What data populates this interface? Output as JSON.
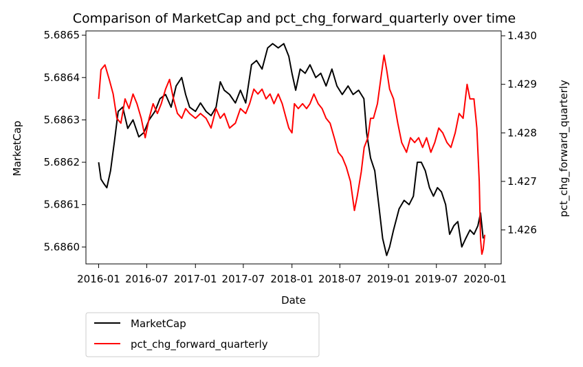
{
  "chart_data": {
    "type": "line",
    "title": "Comparison of MarketCap and pct_chg_forward_quarterly over time",
    "xlabel": "Date",
    "x_ticks": [
      "2016-01",
      "2016-07",
      "2017-01",
      "2017-07",
      "2018-01",
      "2018-07",
      "2019-01",
      "2019-07",
      "2020-01"
    ],
    "x_range": [
      "2015-11-14",
      "2020-03-02"
    ],
    "y_left": {
      "label": "MarketCap",
      "range": [
        5.68596,
        5.68651
      ],
      "ticks": [
        "5.6860",
        "5.6861",
        "5.6862",
        "5.6863",
        "5.6864",
        "5.6865"
      ],
      "color": "#000000"
    },
    "y_right": {
      "label": "pct_chg_forward_quarterly",
      "range": [
        1.4253,
        1.4301
      ],
      "ticks": [
        "1.426",
        "1.427",
        "1.428",
        "1.429",
        "1.430"
      ],
      "color": "#ff0000"
    },
    "grid": false,
    "legend_placement": "below-left",
    "series": [
      {
        "name": "MarketCap",
        "axis": "left",
        "color": "#000000",
        "points": [
          [
            "2016-01-01",
            5.6862
          ],
          [
            "2016-01-10",
            5.68616
          ],
          [
            "2016-01-20",
            5.68615
          ],
          [
            "2016-02-01",
            5.68614
          ],
          [
            "2016-02-15",
            5.68618
          ],
          [
            "2016-03-01",
            5.68625
          ],
          [
            "2016-03-15",
            5.68632
          ],
          [
            "2016-04-01",
            5.68633
          ],
          [
            "2016-04-20",
            5.68628
          ],
          [
            "2016-05-10",
            5.6863
          ],
          [
            "2016-06-01",
            5.68626
          ],
          [
            "2016-06-20",
            5.68627
          ],
          [
            "2016-07-10",
            5.6863
          ],
          [
            "2016-08-01",
            5.68632
          ],
          [
            "2016-08-20",
            5.68635
          ],
          [
            "2016-09-10",
            5.68636
          ],
          [
            "2016-10-01",
            5.68633
          ],
          [
            "2016-10-20",
            5.68638
          ],
          [
            "2016-11-10",
            5.6864
          ],
          [
            "2016-11-25",
            5.68636
          ],
          [
            "2016-12-10",
            5.68633
          ],
          [
            "2017-01-01",
            5.68632
          ],
          [
            "2017-01-20",
            5.68634
          ],
          [
            "2017-02-10",
            5.68632
          ],
          [
            "2017-03-01",
            5.68631
          ],
          [
            "2017-03-20",
            5.68633
          ],
          [
            "2017-04-05",
            5.68639
          ],
          [
            "2017-04-20",
            5.68637
          ],
          [
            "2017-05-10",
            5.68636
          ],
          [
            "2017-06-01",
            5.68634
          ],
          [
            "2017-06-20",
            5.68637
          ],
          [
            "2017-07-10",
            5.68634
          ],
          [
            "2017-08-01",
            5.68643
          ],
          [
            "2017-08-20",
            5.68644
          ],
          [
            "2017-09-10",
            5.68642
          ],
          [
            "2017-10-01",
            5.68647
          ],
          [
            "2017-10-20",
            5.68648
          ],
          [
            "2017-11-10",
            5.68647
          ],
          [
            "2017-12-01",
            5.68648
          ],
          [
            "2017-12-20",
            5.68645
          ],
          [
            "2018-01-01",
            5.68641
          ],
          [
            "2018-01-15",
            5.68637
          ],
          [
            "2018-02-01",
            5.68642
          ],
          [
            "2018-02-20",
            5.68641
          ],
          [
            "2018-03-10",
            5.68643
          ],
          [
            "2018-04-01",
            5.6864
          ],
          [
            "2018-04-20",
            5.68641
          ],
          [
            "2018-05-10",
            5.68638
          ],
          [
            "2018-06-01",
            5.68642
          ],
          [
            "2018-06-20",
            5.68638
          ],
          [
            "2018-07-10",
            5.68636
          ],
          [
            "2018-08-01",
            5.68638
          ],
          [
            "2018-08-20",
            5.68636
          ],
          [
            "2018-09-10",
            5.68637
          ],
          [
            "2018-09-30",
            5.68635
          ],
          [
            "2018-10-10",
            5.68627
          ],
          [
            "2018-10-25",
            5.68621
          ],
          [
            "2018-11-10",
            5.68618
          ],
          [
            "2018-11-25",
            5.6861
          ],
          [
            "2018-12-10",
            5.68602
          ],
          [
            "2018-12-25",
            5.68598
          ],
          [
            "2019-01-05",
            5.686
          ],
          [
            "2019-01-20",
            5.68604
          ],
          [
            "2019-02-10",
            5.68609
          ],
          [
            "2019-03-01",
            5.68611
          ],
          [
            "2019-03-20",
            5.6861
          ],
          [
            "2019-04-05",
            5.68612
          ],
          [
            "2019-04-20",
            5.6862
          ],
          [
            "2019-05-05",
            5.6862
          ],
          [
            "2019-05-20",
            5.68618
          ],
          [
            "2019-06-05",
            5.68614
          ],
          [
            "2019-06-20",
            5.68612
          ],
          [
            "2019-07-05",
            5.68614
          ],
          [
            "2019-07-20",
            5.68613
          ],
          [
            "2019-08-05",
            5.6861
          ],
          [
            "2019-08-20",
            5.68603
          ],
          [
            "2019-09-05",
            5.68605
          ],
          [
            "2019-09-20",
            5.68606
          ],
          [
            "2019-10-05",
            5.686
          ],
          [
            "2019-10-20",
            5.68602
          ],
          [
            "2019-11-05",
            5.68604
          ],
          [
            "2019-11-20",
            5.68603
          ],
          [
            "2019-12-05",
            5.68605
          ],
          [
            "2019-12-15",
            5.68608
          ],
          [
            "2019-12-25",
            5.68602
          ]
        ]
      },
      {
        "name": "pct_chg_forward_quarterly",
        "axis": "right",
        "color": "#ff0000",
        "points": [
          [
            "2016-01-01",
            1.4287
          ],
          [
            "2016-01-10",
            1.4293
          ],
          [
            "2016-01-25",
            1.4294
          ],
          [
            "2016-02-10",
            1.4291
          ],
          [
            "2016-02-25",
            1.4288
          ],
          [
            "2016-03-10",
            1.4283
          ],
          [
            "2016-03-25",
            1.4282
          ],
          [
            "2016-04-10",
            1.4287
          ],
          [
            "2016-04-25",
            1.4285
          ],
          [
            "2016-05-10",
            1.4288
          ],
          [
            "2016-05-25",
            1.4286
          ],
          [
            "2016-06-10",
            1.4283
          ],
          [
            "2016-06-25",
            1.4279
          ],
          [
            "2016-07-10",
            1.4283
          ],
          [
            "2016-07-25",
            1.4286
          ],
          [
            "2016-08-10",
            1.4284
          ],
          [
            "2016-08-25",
            1.4286
          ],
          [
            "2016-09-10",
            1.4289
          ],
          [
            "2016-09-25",
            1.4291
          ],
          [
            "2016-10-10",
            1.4287
          ],
          [
            "2016-10-25",
            1.4284
          ],
          [
            "2016-11-10",
            1.4283
          ],
          [
            "2016-11-25",
            1.4285
          ],
          [
            "2016-12-10",
            1.4284
          ],
          [
            "2017-01-01",
            1.4283
          ],
          [
            "2017-01-20",
            1.4284
          ],
          [
            "2017-02-10",
            1.4283
          ],
          [
            "2017-03-01",
            1.4281
          ],
          [
            "2017-03-20",
            1.4285
          ],
          [
            "2017-04-05",
            1.4283
          ],
          [
            "2017-04-20",
            1.4284
          ],
          [
            "2017-05-10",
            1.4281
          ],
          [
            "2017-06-01",
            1.4282
          ],
          [
            "2017-06-20",
            1.4285
          ],
          [
            "2017-07-10",
            1.4284
          ],
          [
            "2017-07-25",
            1.4286
          ],
          [
            "2017-08-10",
            1.4289
          ],
          [
            "2017-08-25",
            1.4288
          ],
          [
            "2017-09-10",
            1.4289
          ],
          [
            "2017-09-25",
            1.4287
          ],
          [
            "2017-10-10",
            1.4288
          ],
          [
            "2017-10-25",
            1.4286
          ],
          [
            "2017-11-10",
            1.4288
          ],
          [
            "2017-11-25",
            1.4286
          ],
          [
            "2017-12-10",
            1.4283
          ],
          [
            "2017-12-20",
            1.4281
          ],
          [
            "2018-01-01",
            1.428
          ],
          [
            "2018-01-10",
            1.4286
          ],
          [
            "2018-01-25",
            1.4285
          ],
          [
            "2018-02-10",
            1.4286
          ],
          [
            "2018-02-25",
            1.4285
          ],
          [
            "2018-03-10",
            1.4286
          ],
          [
            "2018-03-25",
            1.4288
          ],
          [
            "2018-04-10",
            1.4286
          ],
          [
            "2018-04-25",
            1.4285
          ],
          [
            "2018-05-10",
            1.4283
          ],
          [
            "2018-05-25",
            1.4282
          ],
          [
            "2018-06-10",
            1.4279
          ],
          [
            "2018-06-25",
            1.4276
          ],
          [
            "2018-07-10",
            1.4275
          ],
          [
            "2018-07-25",
            1.4273
          ],
          [
            "2018-08-10",
            1.427
          ],
          [
            "2018-08-25",
            1.4264
          ],
          [
            "2018-09-05",
            1.4267
          ],
          [
            "2018-09-20",
            1.4272
          ],
          [
            "2018-10-01",
            1.4277
          ],
          [
            "2018-10-15",
            1.4279
          ],
          [
            "2018-10-25",
            1.4283
          ],
          [
            "2018-11-05",
            1.4283
          ],
          [
            "2018-11-20",
            1.4286
          ],
          [
            "2018-12-05",
            1.4292
          ],
          [
            "2018-12-15",
            1.4296
          ],
          [
            "2018-12-25",
            1.4293
          ],
          [
            "2019-01-05",
            1.4289
          ],
          [
            "2019-01-20",
            1.4287
          ],
          [
            "2019-02-05",
            1.4282
          ],
          [
            "2019-02-20",
            1.4278
          ],
          [
            "2019-03-10",
            1.4276
          ],
          [
            "2019-03-25",
            1.4279
          ],
          [
            "2019-04-10",
            1.4278
          ],
          [
            "2019-04-25",
            1.4279
          ],
          [
            "2019-05-10",
            1.4277
          ],
          [
            "2019-05-25",
            1.4279
          ],
          [
            "2019-06-10",
            1.4276
          ],
          [
            "2019-06-25",
            1.4278
          ],
          [
            "2019-07-10",
            1.4281
          ],
          [
            "2019-07-25",
            1.428
          ],
          [
            "2019-08-10",
            1.4278
          ],
          [
            "2019-08-25",
            1.4277
          ],
          [
            "2019-09-10",
            1.428
          ],
          [
            "2019-09-25",
            1.4284
          ],
          [
            "2019-10-10",
            1.4283
          ],
          [
            "2019-10-25",
            1.429
          ],
          [
            "2019-11-05",
            1.4287
          ],
          [
            "2019-11-20",
            1.4287
          ],
          [
            "2019-12-01",
            1.4281
          ],
          [
            "2019-12-10",
            1.427
          ],
          [
            "2019-12-15",
            1.4258
          ],
          [
            "2019-12-20",
            1.4255
          ],
          [
            "2019-12-25",
            1.4256
          ],
          [
            "2019-12-31",
            1.4259
          ]
        ]
      }
    ]
  }
}
